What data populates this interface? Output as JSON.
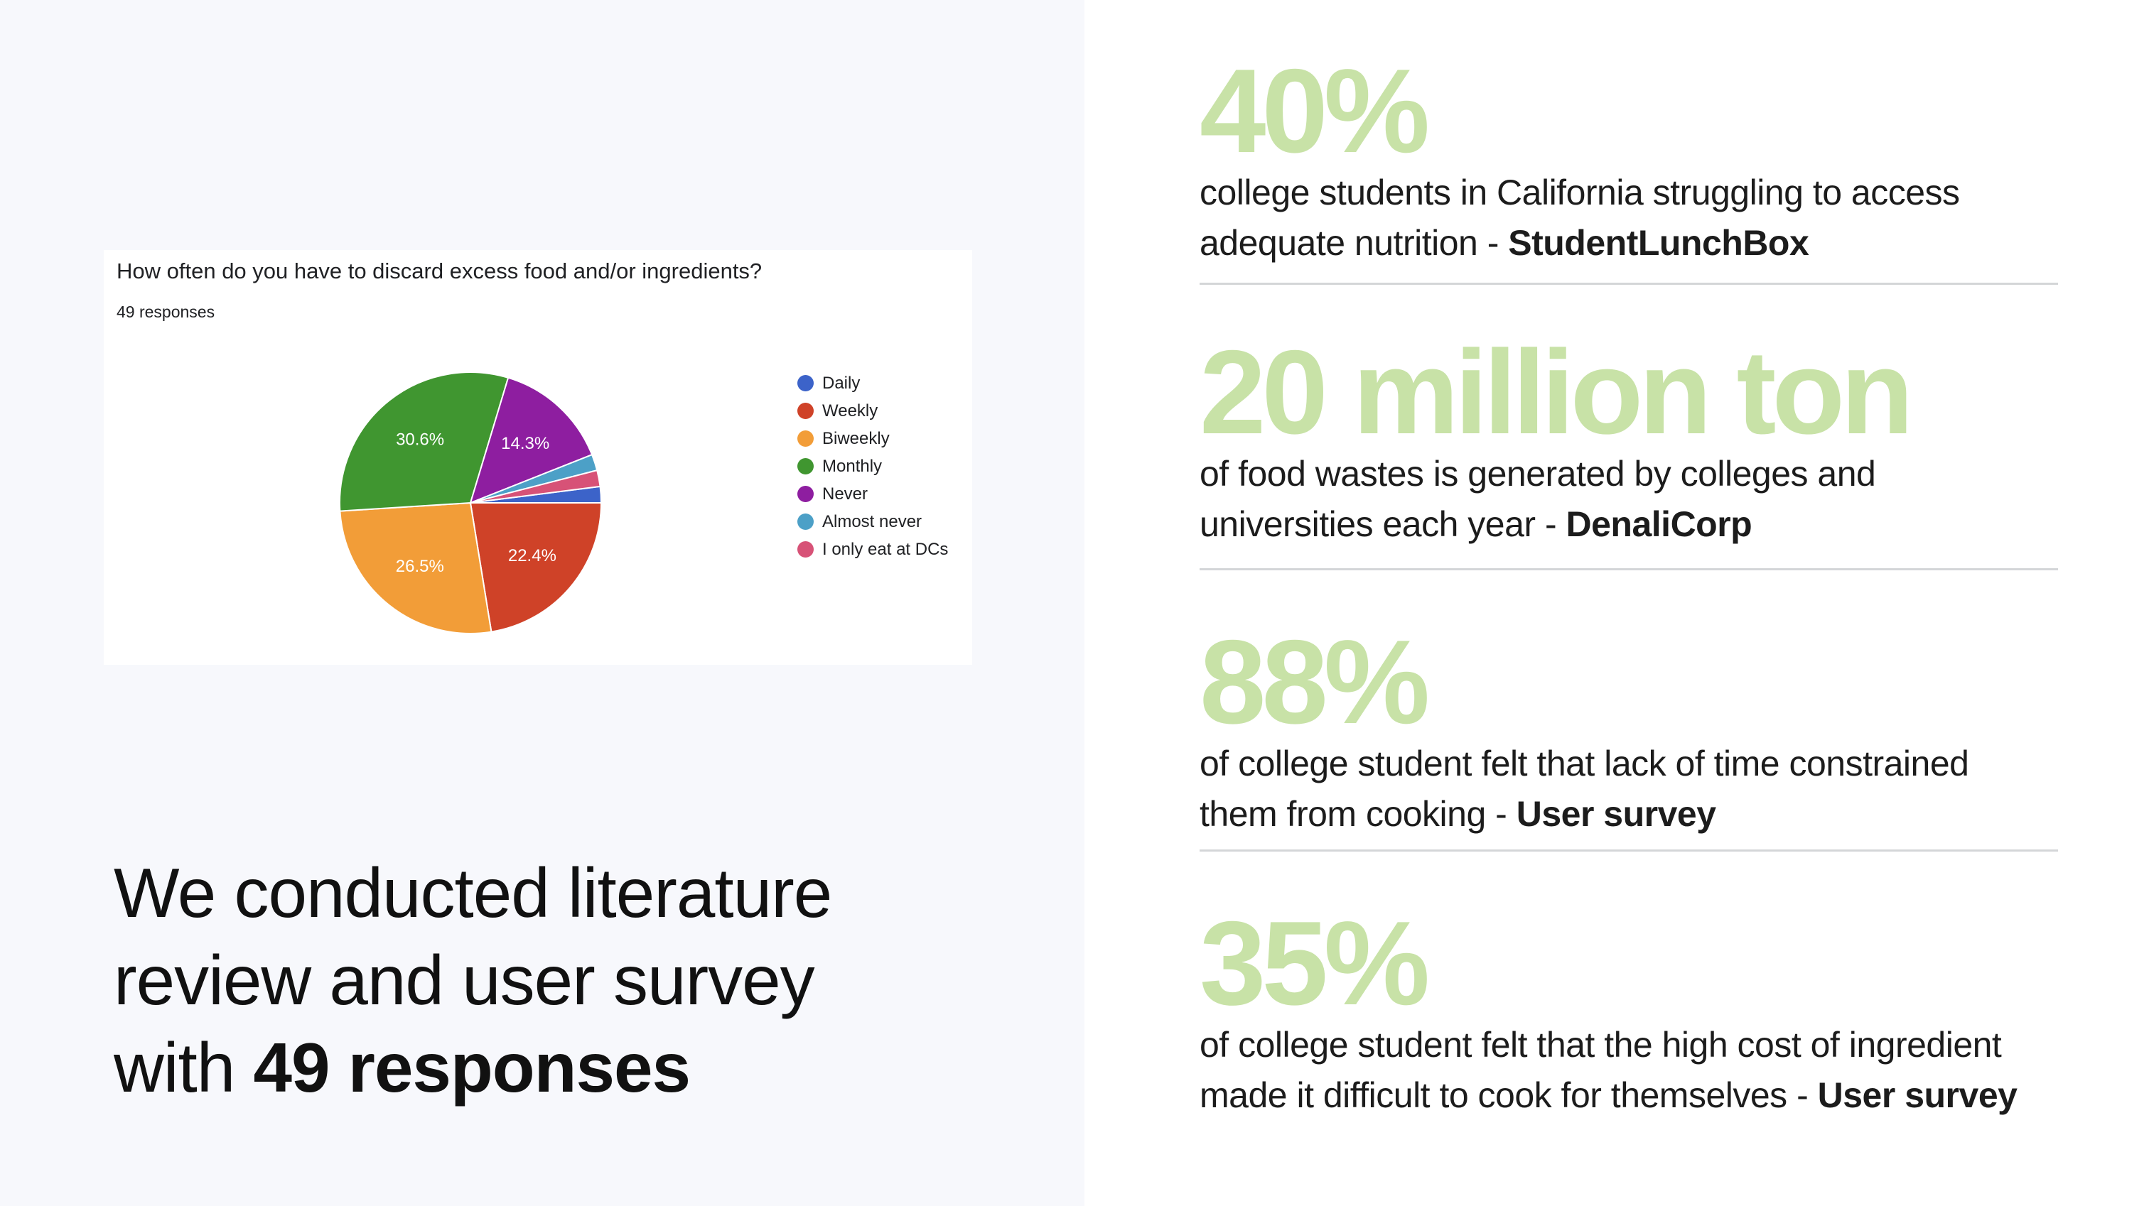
{
  "chart_data": {
    "type": "pie",
    "title": "How often do you have to discard excess food and/or ingredients?",
    "subtitle": "49 responses",
    "categories": [
      "Daily",
      "Weekly",
      "Biweekly",
      "Monthly",
      "Never",
      "Almost never",
      "I only eat at DCs"
    ],
    "values": [
      2.0,
      22.4,
      26.5,
      30.6,
      14.3,
      2.0,
      2.0
    ],
    "colors": [
      "#3c63c9",
      "#cf4228",
      "#f29d38",
      "#409630",
      "#8e1ea0",
      "#4ca0c7",
      "#d75277"
    ],
    "data_labels": [
      "",
      "22.4%",
      "26.5%",
      "30.6%",
      "14.3%",
      "",
      ""
    ],
    "legend_position": "right"
  },
  "headline": {
    "line1": "We conducted literature",
    "line2": "review and user survey",
    "line3_prefix": "with ",
    "line3_bold": "49 responses"
  },
  "stats": [
    {
      "value": "40%",
      "line1": "college students in California struggling to access",
      "line2_prefix": "adequate nutrition - ",
      "source": "StudentLunchBox"
    },
    {
      "value": "20 million ton",
      "line1": "of food wastes is generated by colleges and",
      "line2_prefix": "universities each year - ",
      "source": "DenaliCorp"
    },
    {
      "value": "88%",
      "line1": "of college student felt that lack of time constrained",
      "line2_prefix": "them from cooking - ",
      "source": "User survey"
    },
    {
      "value": "35%",
      "line1": "of college student felt that the high cost of ingredient",
      "line2_prefix": "made it difficult to cook for themselves - ",
      "source": "User survey"
    }
  ],
  "colors": {
    "stat_accent": "#c8e2a7",
    "left_background": "#f7f8fc"
  }
}
